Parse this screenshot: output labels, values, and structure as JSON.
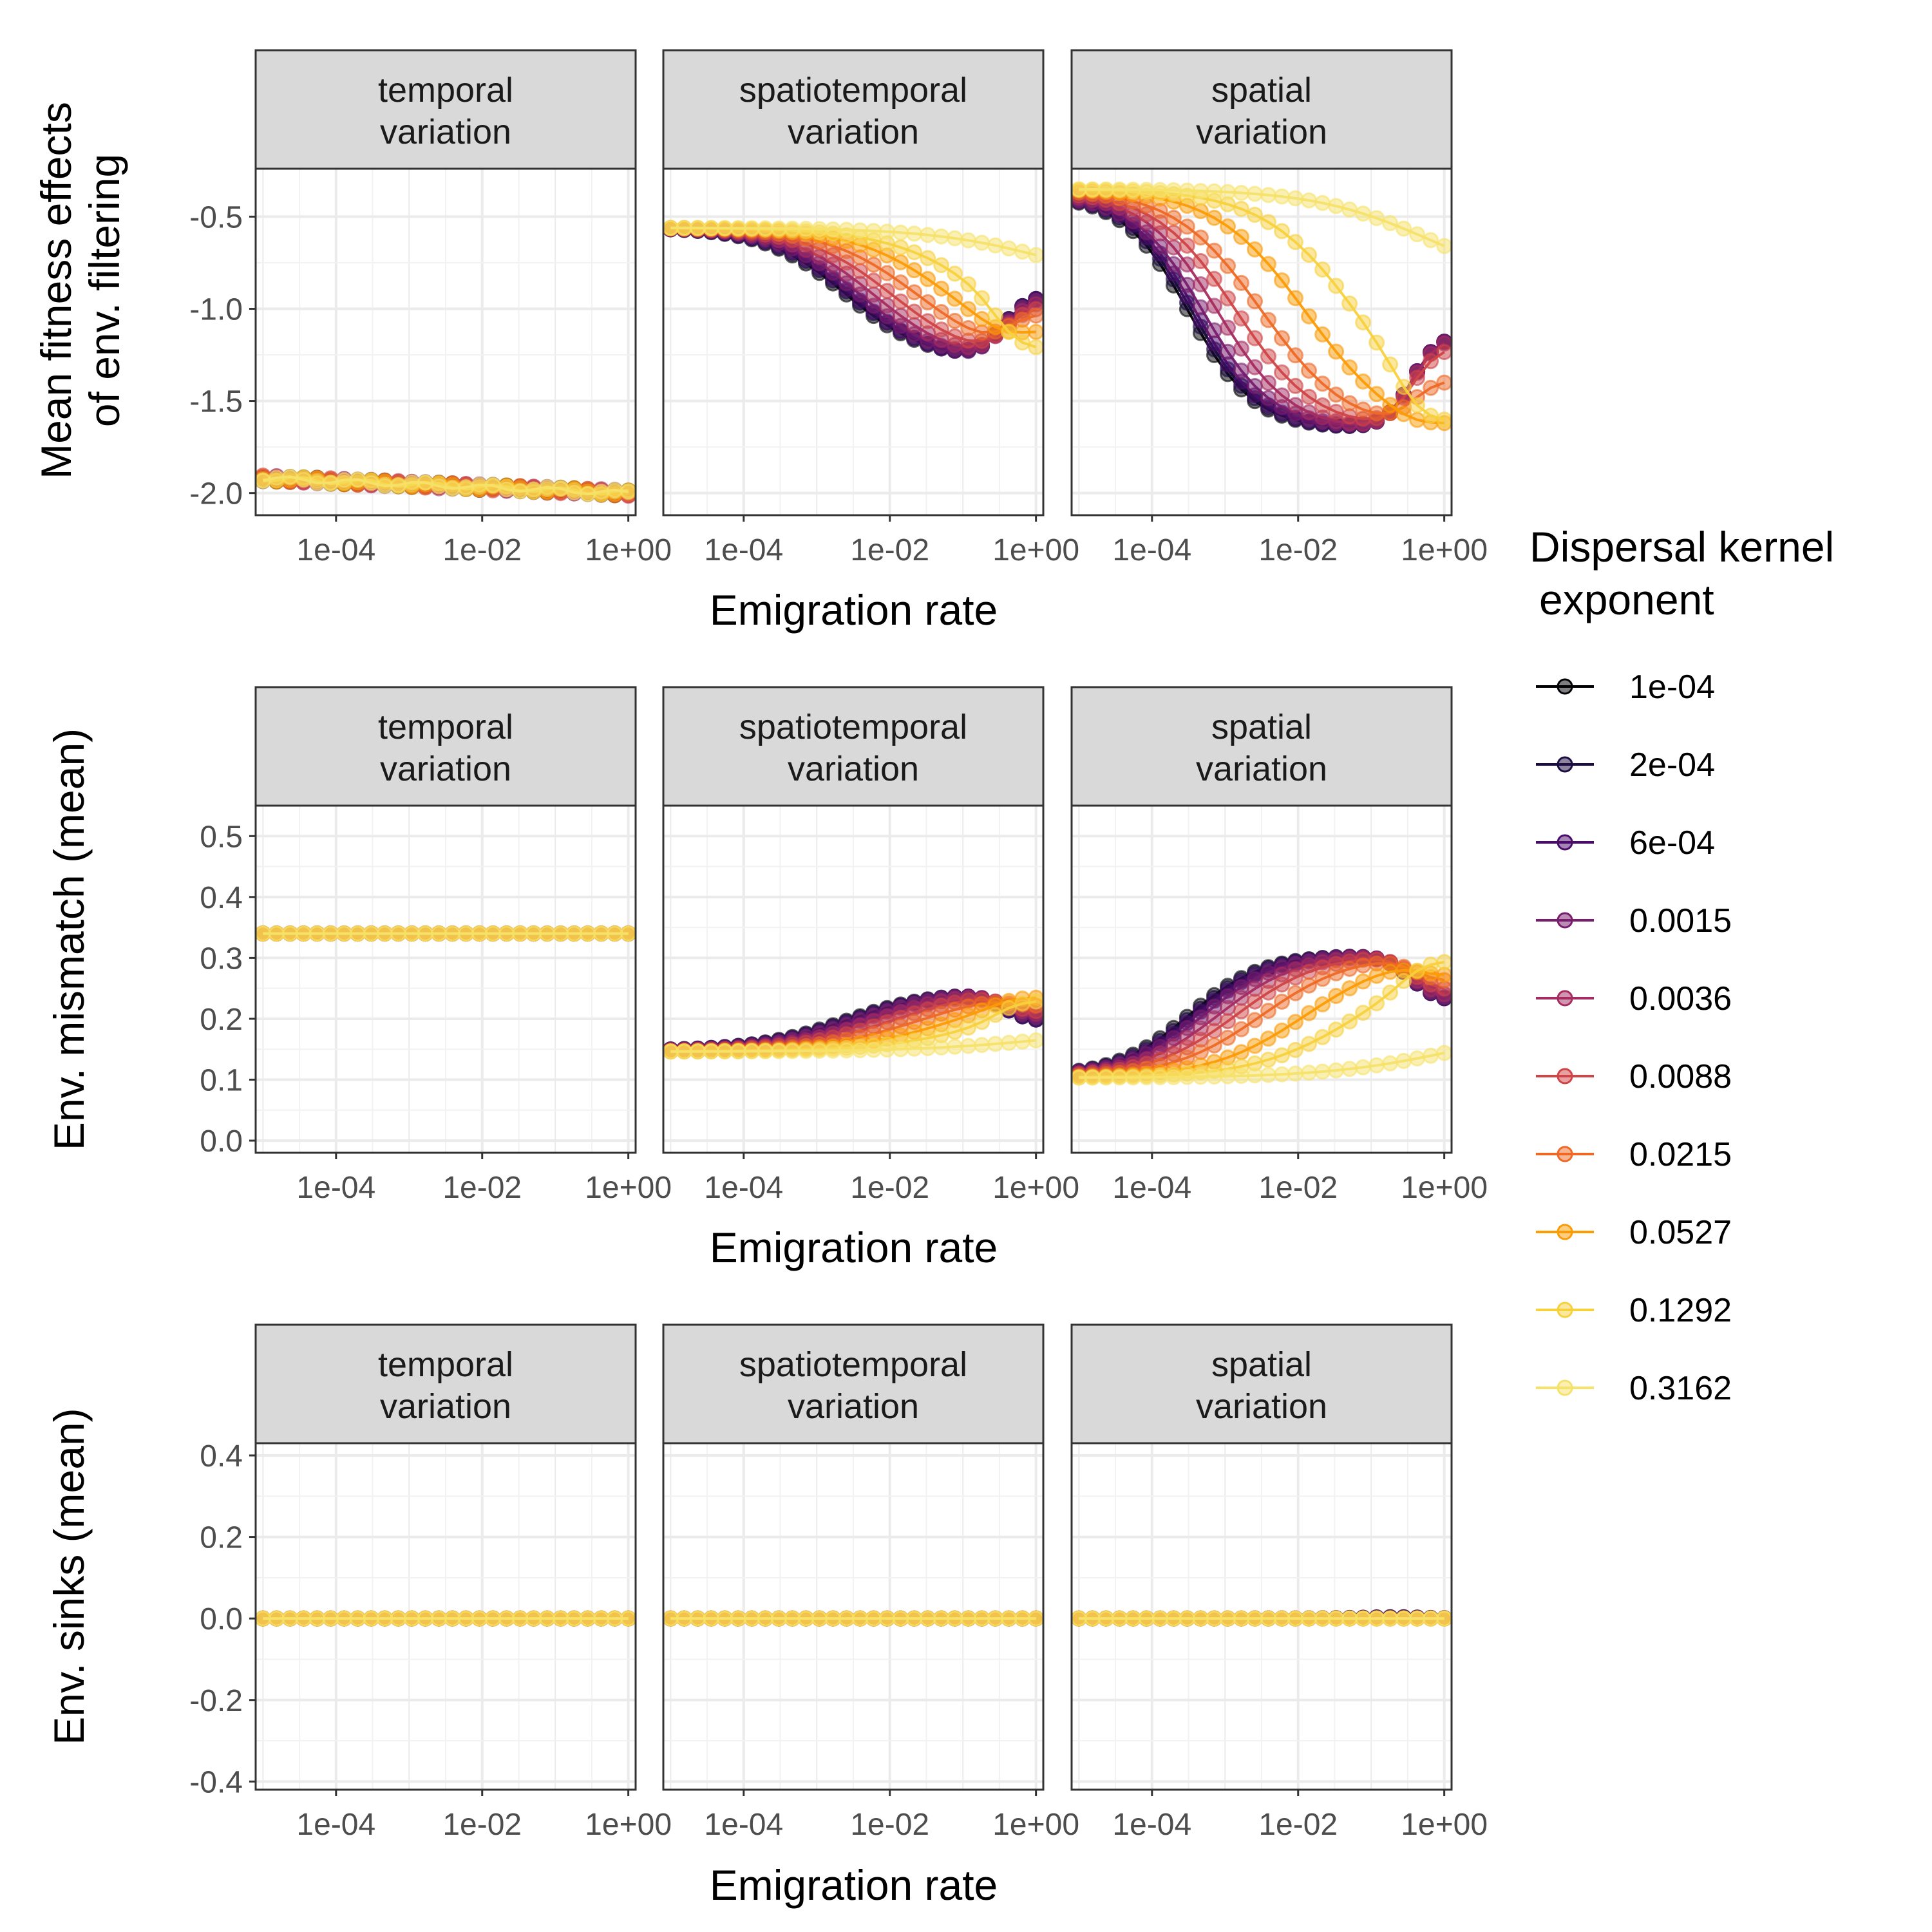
{
  "x_axis_label": "Emigration rate",
  "legend": {
    "title_line1": "Dispersal kernel",
    "title_line2": "exponent",
    "items": [
      {
        "label": "1e-04",
        "color": "#000004"
      },
      {
        "label": "2e-04",
        "color": "#1b0c41"
      },
      {
        "label": "6e-04",
        "color": "#4a0c6b"
      },
      {
        "label": "0.0015",
        "color": "#781c6d"
      },
      {
        "label": "0.0036",
        "color": "#a52c60"
      },
      {
        "label": "0.0088",
        "color": "#cf4446"
      },
      {
        "label": "0.0215",
        "color": "#ed6925"
      },
      {
        "label": "0.0527",
        "color": "#fb9b06"
      },
      {
        "label": "0.1292",
        "color": "#f7d13d"
      },
      {
        "label": "0.3162",
        "color": "#fcffa4"
      }
    ]
  },
  "facets": [
    {
      "line1": "temporal",
      "line2": "variation"
    },
    {
      "line1": "spatiotemporal",
      "line2": "variation"
    },
    {
      "line1": "spatial",
      "line2": "variation"
    }
  ],
  "chart_data": {
    "type": "line",
    "x_scale": "log10",
    "x_range": [
      1e-05,
      1
    ],
    "x_ticks": [
      "1e-04",
      "1e-02",
      "1e+00"
    ],
    "x_label": "Emigration rate",
    "legend_placement": "right",
    "grid": true,
    "rows": [
      {
        "ylabel_line1": "Mean fitness effects",
        "ylabel_line2": "of env. filtering",
        "ylim": [
          -2.12,
          -0.24
        ],
        "yticks": [
          "-0.5",
          "-1.0",
          "-1.5",
          "-2.0"
        ],
        "panels": [
          {
            "facet": "temporal variation",
            "start": [
              -1.92,
              -1.92,
              -1.92,
              -1.92,
              -1.92,
              -1.92,
              -1.92,
              -1.92,
              -1.92,
              -1.92
            ],
            "end": [
              -2.0,
              -2.0,
              -2.0,
              -2.0,
              -2.0,
              -2.0,
              -2.0,
              -2.0,
              -2.0,
              -2.0
            ],
            "min": [
              -2.0,
              -2.0,
              -2.0,
              -2.0,
              -2.0,
              -2.0,
              -2.0,
              -2.0,
              -2.0,
              -2.0
            ],
            "mid": [
              -1.0,
              -1.0,
              -1.0,
              -1.0,
              -1.0,
              -1.0,
              -1.0,
              -1.0,
              -1.0,
              -1.0
            ],
            "w": [
              2,
              2,
              2,
              2,
              2,
              2,
              2,
              2,
              2,
              2
            ]
          },
          {
            "facet": "spatiotemporal variation",
            "start": [
              -0.56,
              -0.56,
              -0.56,
              -0.56,
              -0.56,
              -0.56,
              -0.56,
              -0.56,
              -0.56,
              -0.56
            ],
            "end": [
              -0.92,
              -0.92,
              -0.92,
              -0.93,
              -0.95,
              -0.98,
              -1.02,
              -1.12,
              -1.22,
              -0.92
            ],
            "min": [
              -1.28,
              -1.28,
              -1.29,
              -1.29,
              -1.3,
              -1.3,
              -1.3,
              -1.3,
              -1.26,
              -0.92
            ],
            "mid": [
              -2.6,
              -2.55,
              -2.5,
              -2.4,
              -2.2,
              -1.95,
              -1.6,
              -1.15,
              -0.65,
              0.3
            ],
            "w": [
              0.55,
              0.55,
              0.55,
              0.55,
              0.58,
              0.6,
              0.63,
              0.65,
              0.7,
              0.85
            ]
          },
          {
            "facet": "spatial variation",
            "start": [
              -0.38,
              -0.38,
              -0.38,
              -0.38,
              -0.37,
              -0.36,
              -0.35,
              -0.35,
              -0.35,
              -0.35
            ],
            "end": [
              -1.14,
              -1.14,
              -1.14,
              -1.14,
              -1.15,
              -1.2,
              -1.38,
              -1.62,
              -1.61,
              -0.9
            ],
            "min": [
              -1.65,
              -1.65,
              -1.65,
              -1.65,
              -1.66,
              -1.66,
              -1.67,
              -1.68,
              -1.68,
              -0.9
            ],
            "mid": [
              -3.5,
              -3.45,
              -3.4,
              -3.3,
              -3.1,
              -2.85,
              -2.5,
              -1.9,
              -1.2,
              -0.2
            ],
            "w": [
              0.45,
              0.45,
              0.45,
              0.47,
              0.5,
              0.55,
              0.6,
              0.62,
              0.65,
              0.8
            ]
          }
        ]
      },
      {
        "ylabel_line1": "Env. mismatch (mean)",
        "ylabel_line2": "",
        "ylim": [
          -0.02,
          0.55
        ],
        "yticks": [
          "0.0",
          "0.1",
          "0.2",
          "0.3",
          "0.4",
          "0.5"
        ],
        "panels": [
          {
            "facet": "temporal variation",
            "start": [
              0.34,
              0.34,
              0.34,
              0.34,
              0.34,
              0.34,
              0.34,
              0.34,
              0.34,
              0.34
            ],
            "end": [
              0.34,
              0.34,
              0.34,
              0.34,
              0.34,
              0.34,
              0.34,
              0.34,
              0.34,
              0.34
            ],
            "min": [
              0.335,
              0.335,
              0.335,
              0.335,
              0.335,
              0.335,
              0.335,
              0.335,
              0.335,
              0.335
            ],
            "mid": [
              -1.0,
              -1.0,
              -1.0,
              -1.0,
              -1.0,
              -1.0,
              -1.0,
              -1.0,
              -1.0,
              -1.0
            ],
            "w": [
              2,
              2,
              2,
              2,
              2,
              2,
              2,
              2,
              2,
              2
            ]
          },
          {
            "facet": "spatiotemporal variation",
            "start": [
              0.148,
              0.148,
              0.148,
              0.148,
              0.147,
              0.147,
              0.146,
              0.146,
              0.146,
              0.146
            ],
            "end": [
              0.195,
              0.195,
              0.195,
              0.2,
              0.205,
              0.21,
              0.22,
              0.235,
              0.23,
              0.19
            ],
            "min": [
              0.245,
              0.245,
              0.246,
              0.247,
              0.248,
              0.249,
              0.248,
              0.245,
              0.235,
              0.19
            ],
            "mid": [
              -2.6,
              -2.55,
              -2.5,
              -2.4,
              -2.2,
              -1.95,
              -1.6,
              -1.15,
              -0.65,
              0.3
            ],
            "w": [
              0.6,
              0.6,
              0.6,
              0.6,
              0.62,
              0.65,
              0.68,
              0.7,
              0.75,
              0.95
            ]
          },
          {
            "facet": "spatial variation",
            "start": [
              0.105,
              0.105,
              0.105,
              0.105,
              0.104,
              0.104,
              0.103,
              0.103,
              0.103,
              0.103
            ],
            "end": [
              0.228,
              0.228,
              0.228,
              0.23,
              0.235,
              0.245,
              0.26,
              0.27,
              0.295,
              0.195
            ],
            "min": [
              0.305,
              0.305,
              0.305,
              0.306,
              0.307,
              0.308,
              0.308,
              0.308,
              0.3,
              0.195
            ],
            "mid": [
              -3.5,
              -3.45,
              -3.4,
              -3.3,
              -3.1,
              -2.85,
              -2.5,
              -1.9,
              -1.2,
              0.2
            ],
            "w": [
              0.5,
              0.5,
              0.5,
              0.52,
              0.55,
              0.58,
              0.62,
              0.65,
              0.7,
              0.9
            ]
          }
        ]
      },
      {
        "ylabel_line1": "Env. sinks (mean)",
        "ylabel_line2": "",
        "ylim": [
          -0.42,
          0.43
        ],
        "yticks": [
          "0.4",
          "0.2",
          "0.0",
          "-0.2",
          "-0.4"
        ],
        "panels": [
          {
            "facet": "temporal variation",
            "start": [
              0,
              0,
              0,
              0,
              0,
              0,
              0,
              0,
              0,
              0
            ],
            "end": [
              0,
              0,
              0,
              0,
              0,
              0,
              0,
              0,
              0,
              0
            ],
            "min": [
              0,
              0,
              0,
              0,
              0,
              0,
              0,
              0,
              0,
              0
            ],
            "mid": [
              -1,
              -1,
              -1,
              -1,
              -1,
              -1,
              -1,
              -1,
              -1,
              -1
            ],
            "w": [
              2,
              2,
              2,
              2,
              2,
              2,
              2,
              2,
              2,
              2
            ]
          },
          {
            "facet": "spatiotemporal variation",
            "start": [
              0,
              0,
              0,
              0,
              0,
              0,
              0,
              0,
              0,
              0
            ],
            "end": [
              0,
              0,
              0,
              0,
              0,
              0,
              0,
              0,
              0,
              0
            ],
            "min": [
              0,
              0,
              0,
              0,
              0,
              0,
              0,
              0,
              0,
              0
            ],
            "mid": [
              -1,
              -1,
              -1,
              -1,
              -1,
              -1,
              -1,
              -1,
              -1,
              -1
            ],
            "w": [
              2,
              2,
              2,
              2,
              2,
              2,
              2,
              2,
              2,
              2
            ]
          },
          {
            "facet": "spatial variation",
            "start": [
              0,
              0,
              0,
              0,
              0,
              0,
              0,
              0,
              0,
              0
            ],
            "end": [
              0,
              0,
              0,
              0,
              0,
              0,
              0,
              0,
              0,
              0
            ],
            "min": [
              0.008,
              0.008,
              0.006,
              0.004,
              0.002,
              0,
              0,
              0,
              0,
              0
            ],
            "mid": [
              -0.7,
              -0.7,
              -0.7,
              -0.7,
              -0.7,
              -0.7,
              -0.7,
              -0.7,
              -0.7,
              -0.7
            ],
            "w": [
              0.35,
              0.35,
              0.35,
              0.35,
              0.35,
              0.35,
              0.35,
              0.35,
              0.35,
              0.35
            ]
          }
        ]
      }
    ]
  }
}
